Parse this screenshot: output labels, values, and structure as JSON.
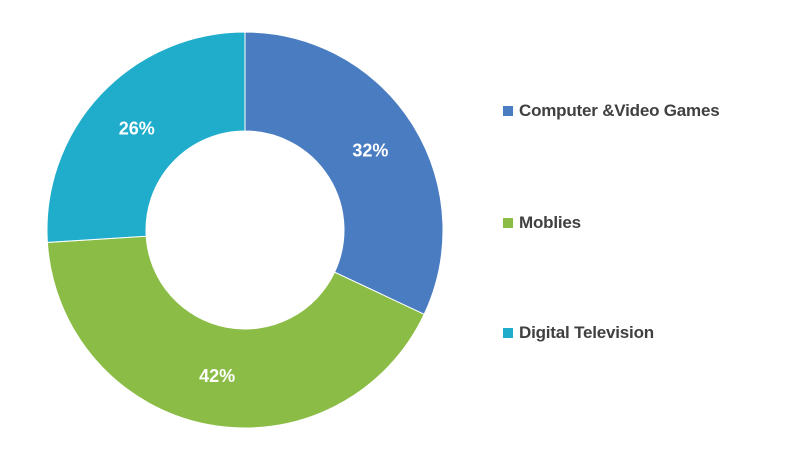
{
  "chart_data": {
    "type": "pie",
    "variant": "donut",
    "categories": [
      "Computer &Video Games",
      "Moblies",
      "Digital Television"
    ],
    "values": [
      32,
      42,
      26
    ],
    "data_labels": [
      "32%",
      "42%",
      "26%"
    ],
    "colors": [
      "#4a7cc2",
      "#8bbd46",
      "#1fadcb"
    ],
    "title": "",
    "legend_position": "right"
  }
}
